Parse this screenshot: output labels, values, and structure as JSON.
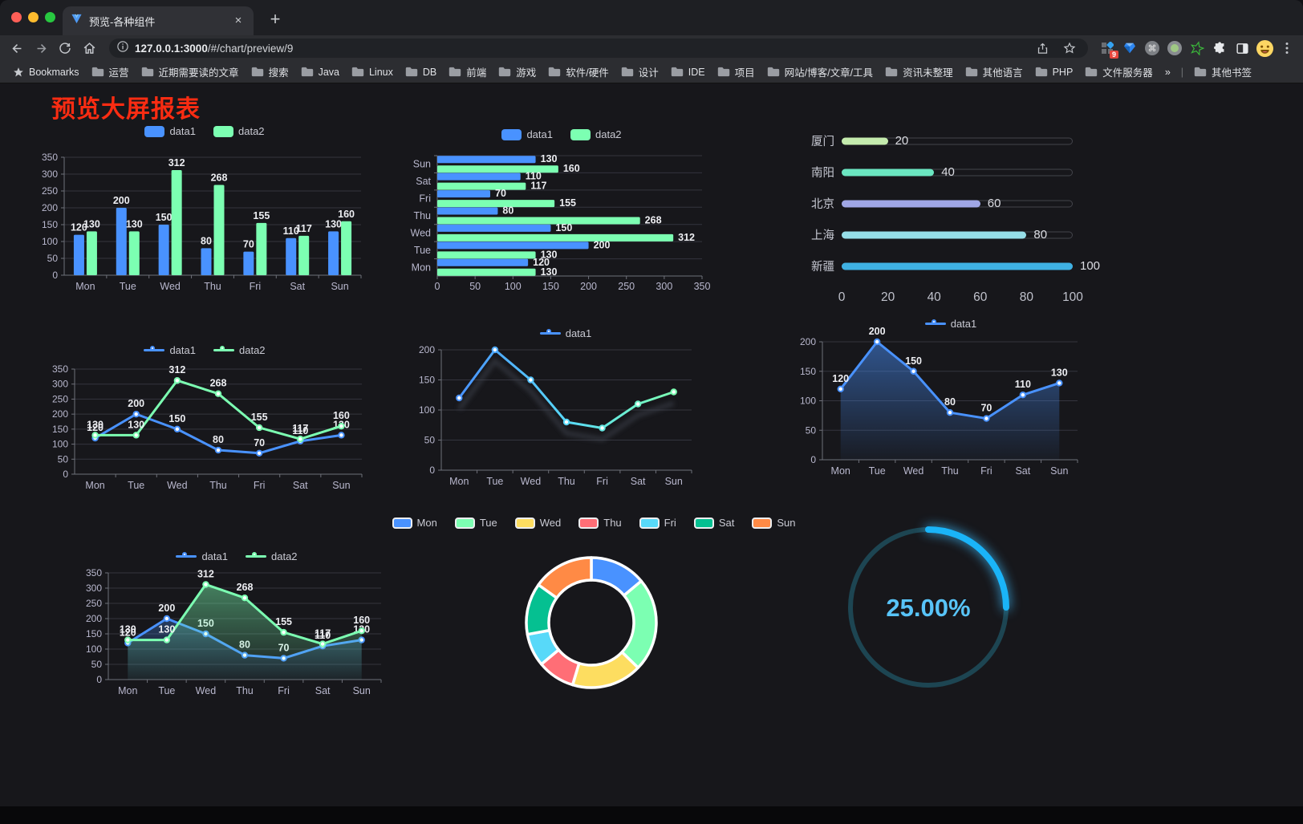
{
  "browser": {
    "traffic_lights": [
      "#ff5f57",
      "#febc2e",
      "#28c840"
    ],
    "tab_title": "预览-各种组件",
    "tab_close_label": "×",
    "new_tab_label": "+",
    "url_host": "127.0.0.1:3000",
    "url_path": "/#/chart/preview/9",
    "extension_badge": "9",
    "bookmarks": {
      "root_label": "Bookmarks",
      "folders": [
        "运营",
        "近期需要读的文章",
        "搜索",
        "Java",
        "Linux",
        "DB",
        "前端",
        "游戏",
        "软件/硬件",
        "设计",
        "IDE",
        "项目",
        "网站/博客/文章/工具",
        "资讯未整理",
        "其他语言",
        "PHP",
        "文件服务器"
      ],
      "overflow_chevron": "»",
      "other_label": "其他书签"
    }
  },
  "page": {
    "title": "预览大屏报表",
    "title_color": "#fa2c12",
    "background": "#17171b"
  },
  "chart_data": [
    {
      "name": "bar-vertical",
      "type": "bar",
      "labels": true,
      "legend": {
        "marker": "rect",
        "items": [
          {
            "label": "data1",
            "color": "#4992ff"
          },
          {
            "label": "data2",
            "color": "#7cffb2"
          }
        ]
      },
      "categories": [
        "Mon",
        "Tue",
        "Wed",
        "Thu",
        "Fri",
        "Sat",
        "Sun"
      ],
      "series": [
        {
          "name": "data1",
          "color": "#4992ff",
          "values": [
            120,
            200,
            150,
            80,
            70,
            110,
            130
          ]
        },
        {
          "name": "data2",
          "color": "#7cffb2",
          "values": [
            130,
            130,
            312,
            268,
            155,
            117,
            160
          ]
        }
      ],
      "ylim": [
        0,
        350
      ],
      "yticks": [
        0,
        50,
        100,
        150,
        200,
        250,
        300,
        350
      ]
    },
    {
      "name": "bar-horizontal",
      "type": "hbar",
      "labels": true,
      "legend": {
        "marker": "rect",
        "items": [
          {
            "label": "data1",
            "color": "#4992ff"
          },
          {
            "label": "data2",
            "color": "#7cffb2"
          }
        ]
      },
      "categories": [
        "Mon",
        "Tue",
        "Wed",
        "Thu",
        "Fri",
        "Sat",
        "Sun"
      ],
      "series": [
        {
          "name": "data1",
          "color": "#4992ff",
          "values": [
            120,
            200,
            150,
            80,
            70,
            110,
            130
          ]
        },
        {
          "name": "data2",
          "color": "#7cffb2",
          "values": [
            130,
            130,
            312,
            268,
            155,
            117,
            160
          ]
        }
      ],
      "xlim": [
        0,
        350
      ],
      "xticks": [
        0,
        50,
        100,
        150,
        200,
        250,
        300,
        350
      ]
    },
    {
      "name": "progress-list",
      "type": "progress",
      "max": 100,
      "axis_ticks": [
        0,
        20,
        40,
        60,
        80,
        100
      ],
      "items": [
        {
          "label": "厦门",
          "value": 20,
          "color": "#c4ebad"
        },
        {
          "label": "南阳",
          "value": 40,
          "color": "#6be6c1"
        },
        {
          "label": "北京",
          "value": 60,
          "color": "#a0a7e6"
        },
        {
          "label": "上海",
          "value": 80,
          "color": "#96dee8"
        },
        {
          "label": "新疆",
          "value": 100,
          "color": "#3fb1e3"
        }
      ]
    },
    {
      "name": "line-basic",
      "type": "line",
      "labels": true,
      "markers": true,
      "legend": {
        "marker": "line",
        "items": [
          {
            "label": "data1",
            "color": "#4992ff"
          },
          {
            "label": "data2",
            "color": "#7cffb2"
          }
        ]
      },
      "categories": [
        "Mon",
        "Tue",
        "Wed",
        "Thu",
        "Fri",
        "Sat",
        "Sun"
      ],
      "series": [
        {
          "name": "data1",
          "color": "#4992ff",
          "values": [
            120,
            200,
            150,
            80,
            70,
            110,
            130
          ]
        },
        {
          "name": "data2",
          "color": "#7cffb2",
          "values": [
            130,
            130,
            312,
            268,
            155,
            117,
            160
          ]
        }
      ],
      "ylim": [
        0,
        350
      ],
      "yticks": [
        0,
        50,
        100,
        150,
        200,
        250,
        300,
        350
      ]
    },
    {
      "name": "line-gradient",
      "type": "line",
      "labels": false,
      "markers": true,
      "shadow": true,
      "legend": {
        "marker": "line",
        "items": [
          {
            "label": "data1",
            "color": "#4992ff"
          }
        ]
      },
      "categories": [
        "Mon",
        "Tue",
        "Wed",
        "Thu",
        "Fri",
        "Sat",
        "Sun"
      ],
      "series": [
        {
          "name": "data1",
          "gradient": [
            "#4992ff",
            "#58d9f9",
            "#7cffb2"
          ],
          "color": "#4992ff",
          "values": [
            120,
            200,
            150,
            80,
            70,
            110,
            130
          ]
        }
      ],
      "ylim": [
        0,
        200
      ],
      "yticks": [
        0,
        50,
        100,
        150,
        200
      ]
    },
    {
      "name": "line-area",
      "type": "line",
      "labels": true,
      "markers": true,
      "legend": {
        "marker": "line",
        "items": [
          {
            "label": "data1",
            "color": "#4992ff"
          }
        ]
      },
      "categories": [
        "Mon",
        "Tue",
        "Wed",
        "Thu",
        "Fri",
        "Sat",
        "Sun"
      ],
      "series": [
        {
          "name": "data1",
          "color": "#4992ff",
          "area": true,
          "values": [
            120,
            200,
            150,
            80,
            70,
            110,
            130
          ]
        }
      ],
      "ylim": [
        0,
        200
      ],
      "yticks": [
        0,
        50,
        100,
        150,
        200
      ]
    },
    {
      "name": "line-area-double",
      "type": "line",
      "labels": true,
      "markers": true,
      "legend": {
        "marker": "line",
        "items": [
          {
            "label": "data1",
            "color": "#4992ff"
          },
          {
            "label": "data2",
            "color": "#7cffb2"
          }
        ]
      },
      "categories": [
        "Mon",
        "Tue",
        "Wed",
        "Thu",
        "Fri",
        "Sat",
        "Sun"
      ],
      "series": [
        {
          "name": "data1",
          "color": "#4992ff",
          "area": true,
          "values": [
            120,
            200,
            150,
            80,
            70,
            110,
            130
          ]
        },
        {
          "name": "data2",
          "color": "#7cffb2",
          "area": true,
          "values": [
            130,
            130,
            312,
            268,
            155,
            117,
            160
          ]
        }
      ],
      "ylim": [
        0,
        350
      ],
      "yticks": [
        0,
        50,
        100,
        150,
        200,
        250,
        300,
        350
      ]
    },
    {
      "name": "donut",
      "type": "pie",
      "legend": {
        "marker": "pie",
        "items": [
          {
            "label": "Mon",
            "color": "#4992ff"
          },
          {
            "label": "Tue",
            "color": "#7cffb2"
          },
          {
            "label": "Wed",
            "color": "#fddd60"
          },
          {
            "label": "Thu",
            "color": "#ff6e76"
          },
          {
            "label": "Fri",
            "color": "#58d9f9"
          },
          {
            "label": "Sat",
            "color": "#05c091"
          },
          {
            "label": "Sun",
            "color": "#ff8a45"
          }
        ]
      },
      "items": [
        {
          "label": "Mon",
          "value": 120,
          "color": "#4992ff"
        },
        {
          "label": "Tue",
          "value": 200,
          "color": "#7cffb2"
        },
        {
          "label": "Wed",
          "value": 150,
          "color": "#fddd60"
        },
        {
          "label": "Thu",
          "value": 80,
          "color": "#ff6e76"
        },
        {
          "label": "Fri",
          "value": 70,
          "color": "#58d9f9"
        },
        {
          "label": "Sat",
          "value": 110,
          "color": "#05c091"
        },
        {
          "label": "Sun",
          "value": 130,
          "color": "#ff8a45"
        }
      ]
    },
    {
      "name": "gauge",
      "type": "gauge",
      "value": 25,
      "display": "25.00%",
      "color": "#1ab4f8",
      "track_color": "#1d4552",
      "text_color": "#58c4f8"
    }
  ]
}
